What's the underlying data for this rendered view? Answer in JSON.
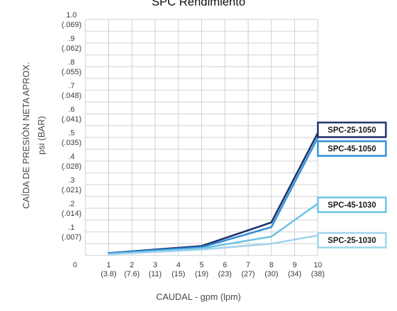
{
  "chart_data": {
    "type": "line",
    "title": "SPC Rendimiento",
    "xlabel": "CAUDAL - gpm (lpm)",
    "ylabel_line1": "CAÍDA DE PRESIÓN NETA APROX.",
    "ylabel_line2": "psi (BAR)",
    "x_ticks": [
      {
        "gpm": "1",
        "lpm": "(3.8)"
      },
      {
        "gpm": "2",
        "lpm": "(7.6)"
      },
      {
        "gpm": "3",
        "lpm": "(11)"
      },
      {
        "gpm": "4",
        "lpm": "(15)"
      },
      {
        "gpm": "5",
        "lpm": "(19)"
      },
      {
        "gpm": "6",
        "lpm": "(23)"
      },
      {
        "gpm": "7",
        "lpm": "(27)"
      },
      {
        "gpm": "8",
        "lpm": "(30)"
      },
      {
        "gpm": "9",
        "lpm": "(34)"
      },
      {
        "gpm": "10",
        "lpm": "(38)"
      }
    ],
    "x_zero_label": "0",
    "y_ticks": [
      {
        "psi": ".1",
        "bar": "(.007)"
      },
      {
        "psi": ".2",
        "bar": "(.014)"
      },
      {
        "psi": ".3",
        "bar": "(.021)"
      },
      {
        "psi": ".4",
        "bar": "(.028)"
      },
      {
        "psi": ".5",
        "bar": "(.035)"
      },
      {
        "psi": ".6",
        "bar": "(.041)"
      },
      {
        "psi": ".7",
        "bar": "(.048)"
      },
      {
        "psi": ".8",
        "bar": "(.055)"
      },
      {
        "psi": ".9",
        "bar": "(.062)"
      },
      {
        "psi": "1.0",
        "bar": "(.069)"
      }
    ],
    "xlim": [
      0,
      10
    ],
    "ylim": [
      0,
      1.0
    ],
    "grid": true,
    "legend_placement": "right",
    "series": [
      {
        "name": "SPC-25-1050",
        "color": "#1b2f6b",
        "x": [
          1,
          5,
          8,
          10
        ],
        "y": [
          0.01,
          0.04,
          0.14,
          0.52
        ]
      },
      {
        "name": "SPC-45-1050",
        "color": "#2f8fd6",
        "x": [
          1,
          5,
          8,
          10
        ],
        "y": [
          0.01,
          0.035,
          0.12,
          0.5
        ]
      },
      {
        "name": "SPC-45-1030",
        "color": "#6cc3e3",
        "x": [
          1,
          5,
          8,
          10
        ],
        "y": [
          0.005,
          0.03,
          0.08,
          0.22
        ]
      },
      {
        "name": "SPC-25-1030",
        "color": "#9fd3ee",
        "x": [
          1,
          5,
          8,
          10
        ],
        "y": [
          0.005,
          0.025,
          0.05,
          0.085
        ]
      }
    ]
  }
}
